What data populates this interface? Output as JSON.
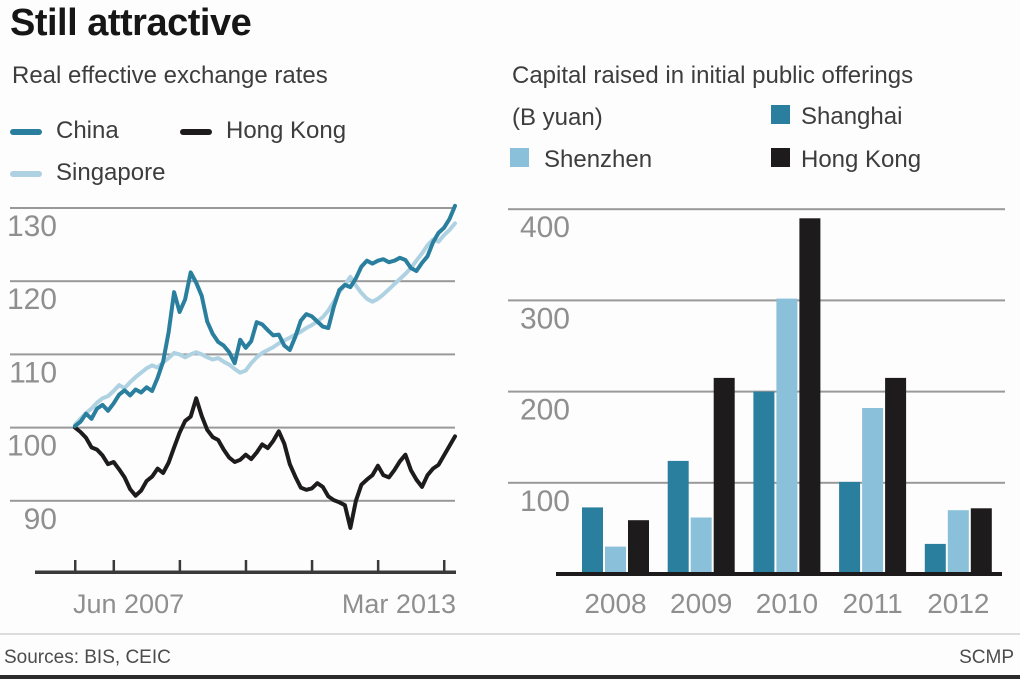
{
  "title": "Still attractive",
  "footer": {
    "sources": "Sources: BIS, CEIC",
    "credit": "SCMP"
  },
  "colors": {
    "teal": "#2a7f9f",
    "light_blue_line": "#afd2e2",
    "light_blue_bar": "#8ac0da",
    "dark": "#1d1b1b",
    "gridline": "#999999",
    "axis": "#3a3a3a",
    "axis_text": "#8f8f8f"
  },
  "chart_data": [
    {
      "type": "line",
      "title": "Real effective exchange rates",
      "x_start_label": "Jun 2007",
      "x_end_label": "Mar 2013",
      "x_range_months": [
        "Jun 2007",
        "Mar 2013"
      ],
      "yticks": [
        130,
        120,
        110,
        100,
        90
      ],
      "ylim": [
        84,
        132
      ],
      "grid": true,
      "legend_position": "top",
      "tick_month_indices": [
        0,
        7,
        19,
        31,
        43,
        55,
        67
      ],
      "series": [
        {
          "name": "China",
          "color": "#2a7f9f",
          "values": [
            100.2,
            100.8,
            101.9,
            101.2,
            102.6,
            103.1,
            102.3,
            103.3,
            104.5,
            105.1,
            104.4,
            105.2,
            104.8,
            105.5,
            105.0,
            106.8,
            109.0,
            113.0,
            118.5,
            115.8,
            117.5,
            121.2,
            119.8,
            118.0,
            114.5,
            112.8,
            111.7,
            111.2,
            110.3,
            108.8,
            112.0,
            110.9,
            111.8,
            114.4,
            114.1,
            113.3,
            112.6,
            112.7,
            111.2,
            110.6,
            112.4,
            114.6,
            115.5,
            115.2,
            114.5,
            113.8,
            113.6,
            116.5,
            118.8,
            119.5,
            119.2,
            120.4,
            122.0,
            122.8,
            122.4,
            122.8,
            123.0,
            122.6,
            122.8,
            123.2,
            122.9,
            121.8,
            121.4,
            122.5,
            123.4,
            125.3,
            126.6,
            127.3,
            128.5,
            130.3
          ]
        },
        {
          "name": "Hong Kong",
          "color": "#1d1b1b",
          "values": [
            100.0,
            99.4,
            98.6,
            97.3,
            97.0,
            96.2,
            95.0,
            95.3,
            94.3,
            93.2,
            91.6,
            90.7,
            91.4,
            92.7,
            93.3,
            94.4,
            93.8,
            95.2,
            97.3,
            99.3,
            100.9,
            101.5,
            104.0,
            101.6,
            99.7,
            98.7,
            98.3,
            97.0,
            95.9,
            95.3,
            95.6,
            96.3,
            95.7,
            96.6,
            97.7,
            97.2,
            98.2,
            99.5,
            97.8,
            95.0,
            93.3,
            91.8,
            91.5,
            91.7,
            92.4,
            91.9,
            90.6,
            90.1,
            89.8,
            89.4,
            86.3,
            90.0,
            92.2,
            92.9,
            93.5,
            94.8,
            93.5,
            93.2,
            94.2,
            95.4,
            96.3,
            94.2,
            92.9,
            91.9,
            93.5,
            94.4,
            94.9,
            96.2,
            97.5,
            98.8
          ]
        },
        {
          "name": "Singapore",
          "color": "#afd2e2",
          "values": [
            100.4,
            101.2,
            102.0,
            102.6,
            103.4,
            104.0,
            104.3,
            105.0,
            105.8,
            105.4,
            106.2,
            106.9,
            107.5,
            108.1,
            108.5,
            108.2,
            108.9,
            109.5,
            110.2,
            110.0,
            109.6,
            110.0,
            110.3,
            110.0,
            109.6,
            109.3,
            109.5,
            109.0,
            108.6,
            108.0,
            107.5,
            107.8,
            108.8,
            109.6,
            110.2,
            110.6,
            111.0,
            111.5,
            111.9,
            112.3,
            112.7,
            113.1,
            113.6,
            114.0,
            114.5,
            115.1,
            116.0,
            117.2,
            118.5,
            119.5,
            120.6,
            119.4,
            118.4,
            117.6,
            117.2,
            117.6,
            118.2,
            118.9,
            119.6,
            120.3,
            121.0,
            121.8,
            122.8,
            123.8,
            124.9,
            125.7,
            125.4,
            126.3,
            127.0,
            127.9
          ]
        }
      ]
    },
    {
      "type": "bar",
      "title": "Capital raised in initial public offerings",
      "unit": "(B yuan)",
      "categories": [
        "2008",
        "2009",
        "2010",
        "2011",
        "2012"
      ],
      "yticks": [
        400,
        300,
        200,
        100
      ],
      "ylim": [
        0,
        430
      ],
      "grid": true,
      "legend_position": "top",
      "series": [
        {
          "name": "Shanghai",
          "color": "#2a7f9f",
          "values": [
            73,
            124,
            200,
            101,
            33
          ]
        },
        {
          "name": "Shenzhen",
          "color": "#8ac0da",
          "values": [
            30,
            62,
            302,
            182,
            70
          ]
        },
        {
          "name": "Hong Kong",
          "color": "#1d1b1b",
          "values": [
            59,
            215,
            390,
            215,
            72
          ]
        }
      ]
    }
  ]
}
